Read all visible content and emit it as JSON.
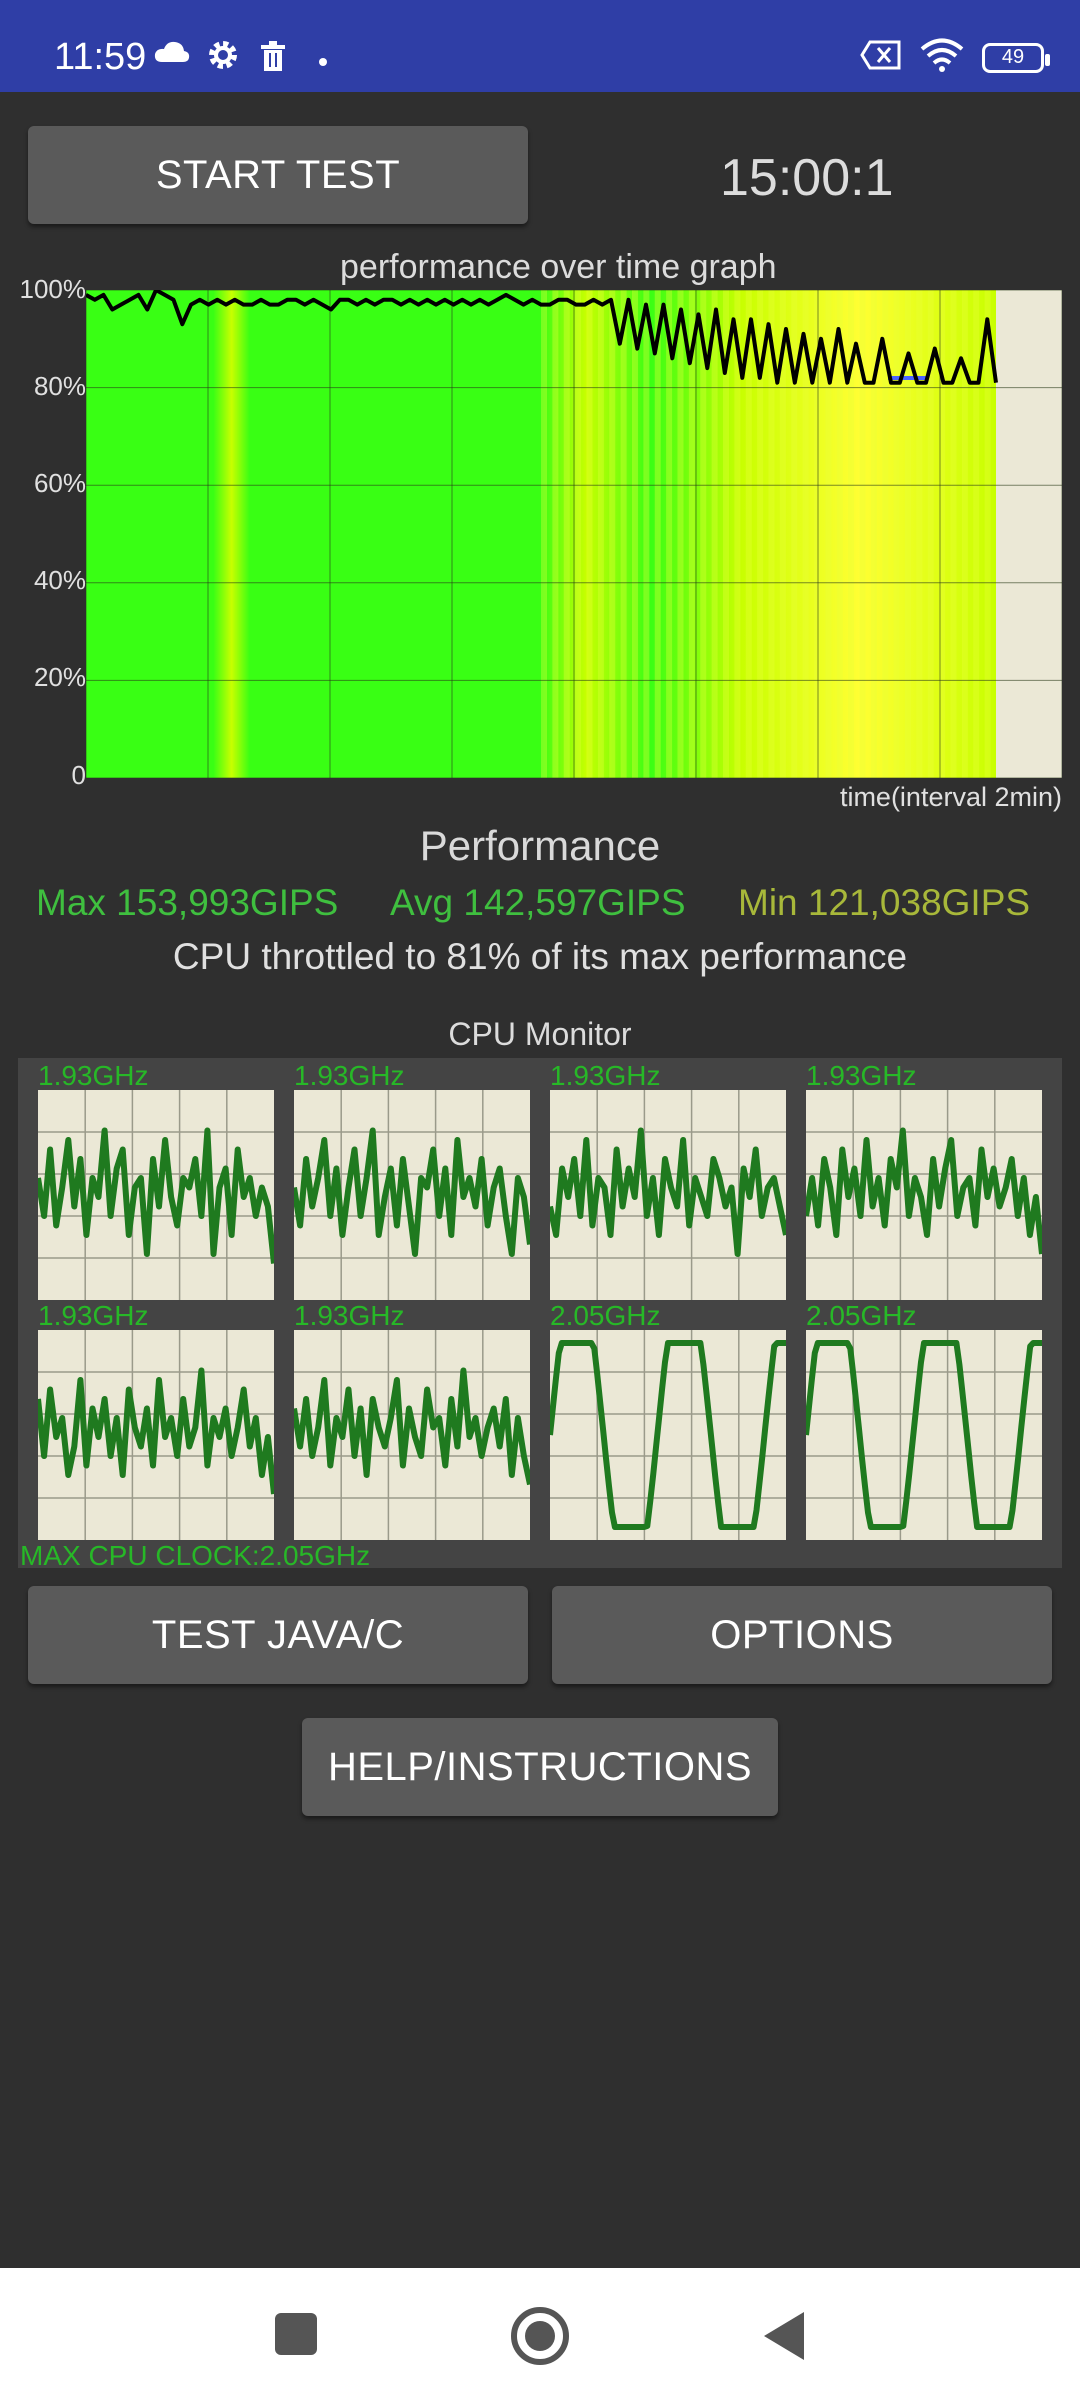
{
  "status_bar": {
    "time": "11:59",
    "icons": [
      "cloud-icon",
      "gear-icon",
      "trash-icon",
      "dot-icon"
    ],
    "right_icons": [
      "sim-x-icon",
      "wifi-icon",
      "battery-icon"
    ],
    "battery": "49"
  },
  "controls": {
    "start_test": "START TEST",
    "timer": "15:00:1"
  },
  "graph": {
    "title": "performance over time graph",
    "y_ticks": [
      "100%",
      "80%",
      "60%",
      "40%",
      "20%",
      "0"
    ],
    "x_label": "time(interval 2min)"
  },
  "chart_data": {
    "type": "line",
    "title": "performance over time graph",
    "xlabel": "time(interval 2min)",
    "ylabel": "",
    "ylim": [
      0,
      100
    ],
    "yticks": [
      "100%",
      "80%",
      "60%",
      "40%",
      "20%",
      "0"
    ],
    "x_range_min": [
      0,
      15
    ],
    "series": [
      {
        "values": [
          99,
          98,
          99,
          96,
          97,
          98,
          99,
          96,
          100,
          99,
          98,
          93,
          97,
          98,
          97,
          98,
          97,
          98,
          97,
          97,
          98,
          97,
          97,
          98,
          98,
          97,
          98,
          97,
          96,
          98,
          98,
          97,
          98,
          97,
          98,
          98,
          97,
          98,
          97,
          98,
          97,
          98,
          97,
          98,
          97,
          98,
          97,
          98,
          99,
          98,
          97,
          98,
          97,
          97,
          98,
          98,
          97,
          97,
          98,
          97,
          98,
          89,
          98,
          88,
          97,
          87,
          97,
          86,
          96,
          85,
          95,
          84,
          96,
          83,
          94,
          82,
          94,
          82,
          93,
          81,
          92,
          81,
          91,
          81,
          90,
          81,
          92,
          81,
          89,
          81,
          81,
          90,
          81,
          81,
          87,
          81,
          81,
          88,
          81,
          81,
          86,
          81,
          81,
          94,
          81
        ]
      }
    ],
    "background_colors": [
      "#39ff14",
      "#c8ff00",
      "#ffff33"
    ]
  },
  "performance": {
    "heading": "Performance",
    "max": "Max 153,993GIPS",
    "avg": "Avg 142,597GIPS",
    "min": "Min 121,038GIPS",
    "throttle": "CPU throttled to 81% of its max performance"
  },
  "cpu_monitor": {
    "title": "CPU Monitor",
    "cores": [
      {
        "freq": "1.93GHz"
      },
      {
        "freq": "1.93GHz"
      },
      {
        "freq": "1.93GHz"
      },
      {
        "freq": "1.93GHz"
      },
      {
        "freq": "1.93GHz"
      },
      {
        "freq": "1.93GHz"
      },
      {
        "freq": "2.05GHz"
      },
      {
        "freq": "2.05GHz"
      }
    ],
    "max_clock": "MAX CPU CLOCK:2.05GHz"
  },
  "buttons": {
    "test_java": "TEST JAVA/C",
    "options": "OPTIONS",
    "help": "HELP/INSTRUCTIONS"
  },
  "colors": {
    "status_bar": "#2f3ea6",
    "max_text": "#3fbf3f",
    "avg_text": "#3fbf3f",
    "min_text": "#a8b83a",
    "core_line": "#1f7a1f"
  },
  "nav": [
    "square-icon",
    "home-circle-icon",
    "back-triangle-icon"
  ]
}
